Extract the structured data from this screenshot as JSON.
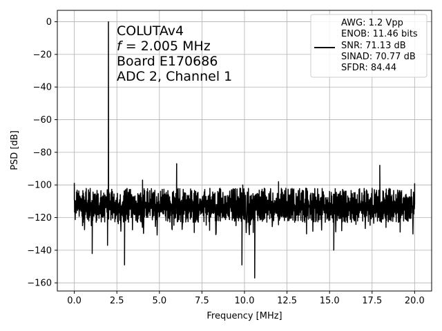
{
  "chart_data": {
    "type": "line",
    "xlabel": "Frequency [MHz]",
    "ylabel": "PSD [dB]",
    "xlim": [
      -1.0,
      21.0
    ],
    "ylim": [
      -165,
      7
    ],
    "xticks": [
      0.0,
      2.5,
      5.0,
      7.5,
      10.0,
      12.5,
      15.0,
      17.5,
      20.0
    ],
    "xtick_labels": [
      "0.0",
      "2.5",
      "5.0",
      "7.5",
      "10.0",
      "12.5",
      "15.0",
      "17.5",
      "20.0"
    ],
    "yticks": [
      0,
      -20,
      -40,
      -60,
      -80,
      -100,
      -120,
      -140,
      -160
    ],
    "ytick_labels": [
      "0",
      "−20",
      "−40",
      "−60",
      "−80",
      "−100",
      "−120",
      "−140",
      "−160"
    ],
    "grid": true,
    "annotation": {
      "lines": [
        "COLUTAv4",
        "= 2.005 MHz",
        "Board E170686",
        "ADC 2, Channel 1"
      ],
      "f_symbol": "f"
    },
    "legend": {
      "placement": "top-right",
      "lines": [
        "AWG: 1.2 Vpp",
        "ENOB: 11.46 bits",
        "SNR: 71.13 dB",
        "SINAD: 70.77 dB",
        "SFDR: 84.44"
      ]
    },
    "series": [
      {
        "color": "#000000",
        "noise_floor": {
          "mean_db": -113,
          "upper_db": -102,
          "lower_db": -123
        },
        "peaks": [
          {
            "x": 2.005,
            "y": 0
          },
          {
            "x": 0.0,
            "y": -99
          },
          {
            "x": 4.01,
            "y": -97
          },
          {
            "x": 6.015,
            "y": -87
          },
          {
            "x": 9.9,
            "y": -100
          },
          {
            "x": 12.0,
            "y": -98
          },
          {
            "x": 17.95,
            "y": -88
          },
          {
            "x": 20.0,
            "y": -99
          }
        ],
        "dips": [
          {
            "x": 1.05,
            "y": -142
          },
          {
            "x": 1.95,
            "y": -137
          },
          {
            "x": 2.95,
            "y": -149
          },
          {
            "x": 9.85,
            "y": -149
          },
          {
            "x": 10.6,
            "y": -157
          },
          {
            "x": 15.25,
            "y": -140
          }
        ]
      }
    ]
  }
}
